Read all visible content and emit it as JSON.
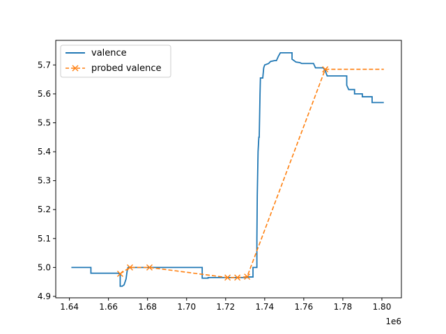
{
  "chart_data": {
    "type": "line",
    "x_ticks": [
      1.64,
      1.66,
      1.68,
      1.7,
      1.72,
      1.74,
      1.76,
      1.78,
      1.8
    ],
    "x_tick_labels": [
      "1.64",
      "1.66",
      "1.68",
      "1.70",
      "1.72",
      "1.74",
      "1.76",
      "1.78",
      "1.80"
    ],
    "x_offset_label": "1e6",
    "xlim": [
      1.633,
      1.81
    ],
    "y_ticks": [
      4.9,
      5.0,
      5.1,
      5.2,
      5.3,
      5.4,
      5.5,
      5.6,
      5.7
    ],
    "y_tick_labels": [
      "4.9",
      "5.0",
      "5.1",
      "5.2",
      "5.3",
      "5.4",
      "5.5",
      "5.6",
      "5.7"
    ],
    "ylim": [
      4.895,
      5.785
    ],
    "legend_position": "upper-left",
    "series": [
      {
        "name": "valence",
        "color": "#1f77b4",
        "style": "step-line",
        "points": [
          [
            1.641,
            5.0
          ],
          [
            1.651,
            5.0
          ],
          [
            1.651,
            4.98
          ],
          [
            1.665,
            4.98
          ],
          [
            1.6655,
            4.978
          ],
          [
            1.666,
            4.978
          ],
          [
            1.666,
            4.935
          ],
          [
            1.667,
            4.935
          ],
          [
            1.668,
            4.94
          ],
          [
            1.669,
            4.96
          ],
          [
            1.6695,
            4.985
          ],
          [
            1.67,
            5.0
          ],
          [
            1.708,
            5.0
          ],
          [
            1.708,
            4.963
          ],
          [
            1.711,
            4.963
          ],
          [
            1.711,
            4.965
          ],
          [
            1.731,
            4.965
          ],
          [
            1.731,
            4.967
          ],
          [
            1.734,
            4.967
          ],
          [
            1.734,
            5.0
          ],
          [
            1.736,
            5.0
          ],
          [
            1.736,
            5.1
          ],
          [
            1.7362,
            5.25
          ],
          [
            1.7366,
            5.4
          ],
          [
            1.737,
            5.45
          ],
          [
            1.7372,
            5.45
          ],
          [
            1.7376,
            5.6
          ],
          [
            1.7378,
            5.655
          ],
          [
            1.739,
            5.655
          ],
          [
            1.7395,
            5.69
          ],
          [
            1.74,
            5.7
          ],
          [
            1.742,
            5.705
          ],
          [
            1.743,
            5.712
          ],
          [
            1.745,
            5.715
          ],
          [
            1.746,
            5.715
          ],
          [
            1.747,
            5.73
          ],
          [
            1.748,
            5.742
          ],
          [
            1.754,
            5.742
          ],
          [
            1.754,
            5.72
          ],
          [
            1.756,
            5.71
          ],
          [
            1.758,
            5.708
          ],
          [
            1.759,
            5.705
          ],
          [
            1.765,
            5.705
          ],
          [
            1.766,
            5.69
          ],
          [
            1.77,
            5.69
          ],
          [
            1.771,
            5.68
          ],
          [
            1.772,
            5.662
          ],
          [
            1.782,
            5.662
          ],
          [
            1.782,
            5.63
          ],
          [
            1.783,
            5.615
          ],
          [
            1.786,
            5.615
          ],
          [
            1.786,
            5.6
          ],
          [
            1.79,
            5.6
          ],
          [
            1.79,
            5.59
          ],
          [
            1.795,
            5.59
          ],
          [
            1.795,
            5.57
          ],
          [
            1.801,
            5.57
          ]
        ]
      },
      {
        "name": "probed valence",
        "color": "#ff7f0e",
        "style": "dashed-x-markers",
        "points": [
          [
            1.666,
            4.978
          ],
          [
            1.671,
            5.0
          ],
          [
            1.681,
            5.0
          ],
          [
            1.721,
            4.965
          ],
          [
            1.726,
            4.965
          ],
          [
            1.731,
            4.968
          ],
          [
            1.771,
            5.685
          ],
          [
            1.801,
            5.685
          ]
        ],
        "marker_count": 7
      }
    ]
  }
}
